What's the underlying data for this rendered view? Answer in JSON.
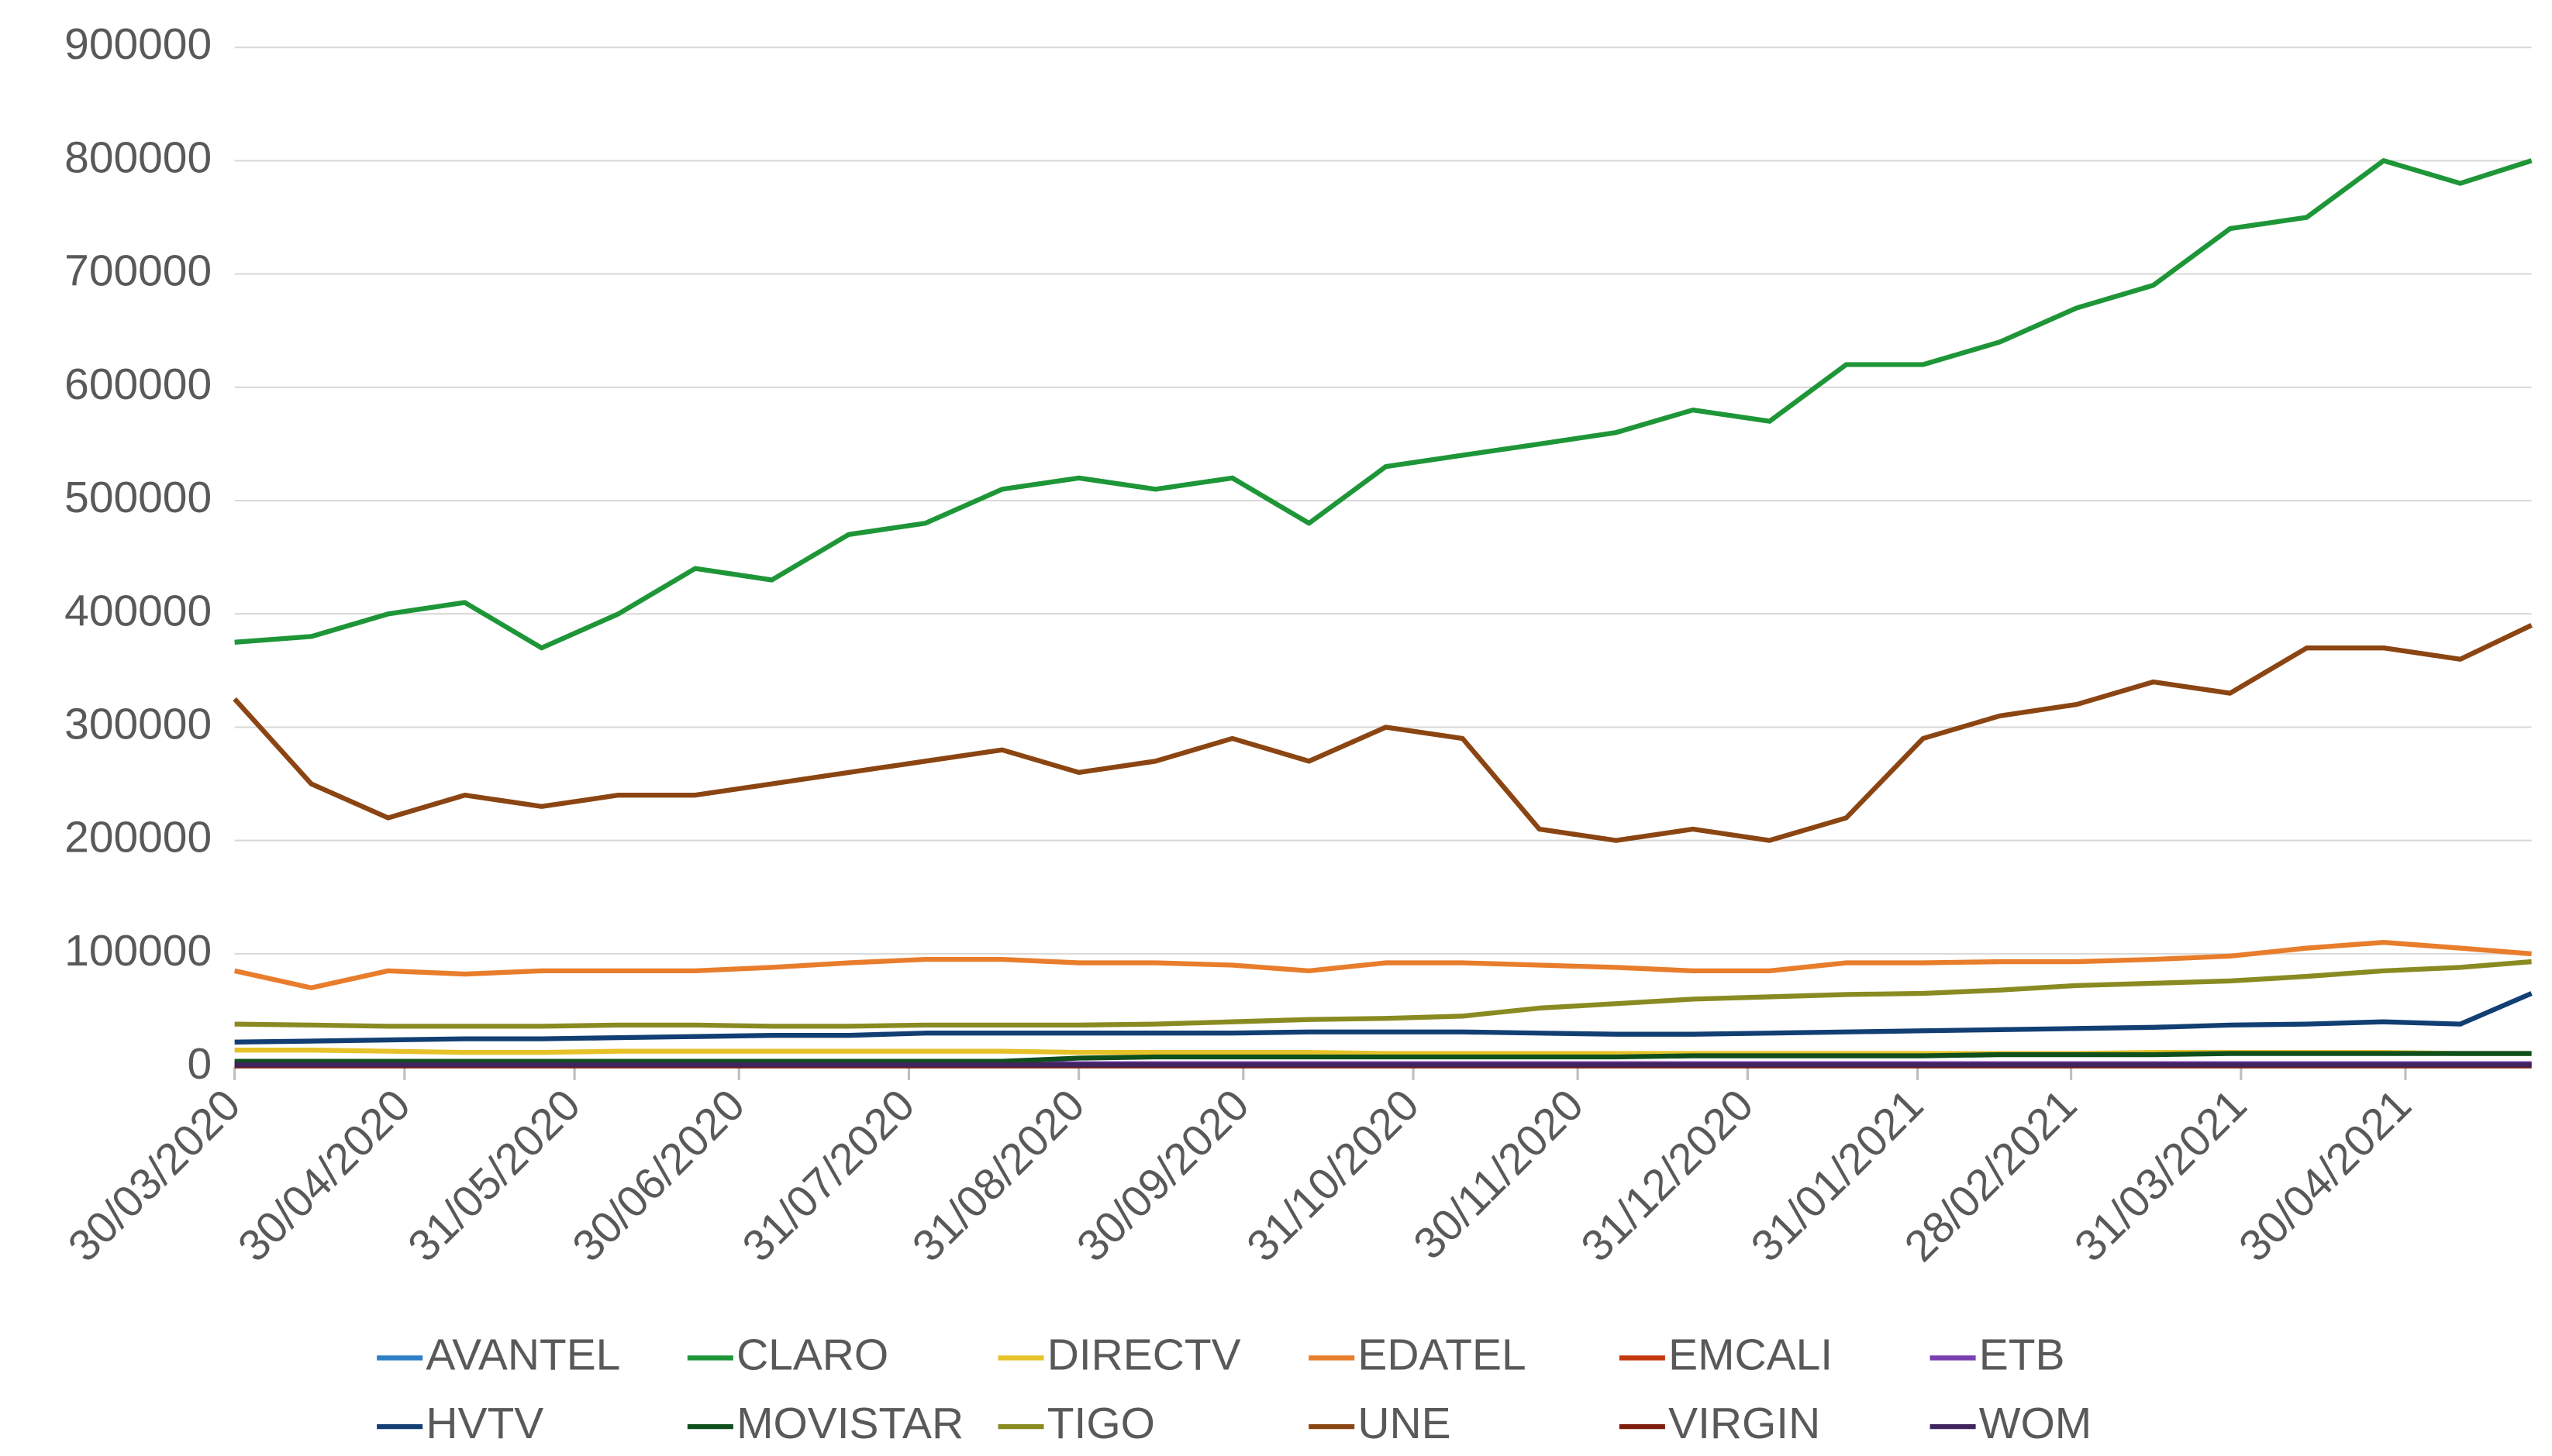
{
  "chart_data": {
    "type": "line",
    "x": [
      "30/03/2020",
      "13/04/2020",
      "27/04/2020",
      "11/05/2020",
      "25/05/2020",
      "08/06/2020",
      "22/06/2020",
      "06/07/2020",
      "20/07/2020",
      "03/08/2020",
      "17/08/2020",
      "31/08/2020",
      "14/09/2020",
      "28/09/2020",
      "12/10/2020",
      "26/10/2020",
      "09/11/2020",
      "23/11/2020",
      "07/12/2020",
      "21/12/2020",
      "04/01/2021",
      "18/01/2021",
      "01/02/2021",
      "15/02/2021",
      "01/03/2021",
      "15/03/2021",
      "29/03/2021",
      "12/04/2021",
      "26/04/2021",
      "10/05/2021",
      "23/05/2021"
    ],
    "xlim": [
      "30/03/2020",
      "23/05/2021"
    ],
    "xticks": [
      "30/03/2020",
      "30/04/2020",
      "31/05/2020",
      "30/06/2020",
      "31/07/2020",
      "31/08/2020",
      "30/09/2020",
      "31/10/2020",
      "30/11/2020",
      "31/12/2020",
      "31/01/2021",
      "28/02/2021",
      "31/03/2021",
      "30/04/2021"
    ],
    "ylim": [
      0,
      900000
    ],
    "yticks": [
      0,
      100000,
      200000,
      300000,
      400000,
      500000,
      600000,
      700000,
      800000,
      900000
    ],
    "grid": true,
    "legend": "bottom",
    "series": [
      {
        "name": "AVANTEL",
        "color": "#2e7fc6",
        "values": [
          3000,
          3000,
          3000,
          3000,
          3000,
          3000,
          3000,
          3000,
          3000,
          3000,
          3000,
          3000,
          3000,
          3000,
          3000,
          3000,
          3000,
          3000,
          3000,
          3000,
          3000,
          3000,
          3000,
          3000,
          3000,
          3000,
          3000,
          3000,
          3000,
          3000,
          3000
        ]
      },
      {
        "name": "CLARO",
        "color": "#1e9638",
        "values": [
          375000,
          380000,
          400000,
          410000,
          370000,
          400000,
          440000,
          430000,
          470000,
          480000,
          510000,
          520000,
          510000,
          520000,
          480000,
          530000,
          540000,
          550000,
          560000,
          580000,
          570000,
          620000,
          620000,
          640000,
          670000,
          690000,
          740000,
          750000,
          800000,
          780000,
          800000
        ]
      },
      {
        "name": "DIRECTV",
        "color": "#e6c229",
        "values": [
          15000,
          15000,
          14000,
          13000,
          13000,
          14000,
          14000,
          14000,
          14000,
          14000,
          14000,
          13000,
          13000,
          13000,
          13000,
          12000,
          12000,
          12000,
          12000,
          12000,
          12000,
          12000,
          12000,
          12000,
          12000,
          13000,
          13000,
          13000,
          13000,
          12000,
          12000
        ]
      },
      {
        "name": "EDATEL",
        "color": "#e87d2c",
        "values": [
          85000,
          70000,
          85000,
          82000,
          85000,
          85000,
          85000,
          88000,
          92000,
          95000,
          95000,
          92000,
          92000,
          90000,
          85000,
          92000,
          92000,
          90000,
          88000,
          85000,
          85000,
          92000,
          92000,
          93000,
          93000,
          95000,
          98000,
          105000,
          110000,
          105000,
          100000
        ]
      },
      {
        "name": "EMCALI",
        "color": "#c4380f",
        "values": [
          2000,
          2000,
          2000,
          2000,
          2000,
          2000,
          2000,
          2000,
          2000,
          2000,
          2000,
          2000,
          2000,
          2000,
          2000,
          2000,
          2000,
          2000,
          2000,
          2000,
          2000,
          2000,
          2000,
          2000,
          2000,
          2000,
          2000,
          2000,
          2000,
          2000,
          2000
        ]
      },
      {
        "name": "ETB",
        "color": "#7a3fb0",
        "values": [
          3000,
          3000,
          3000,
          3000,
          3000,
          3000,
          3000,
          3000,
          3000,
          3000,
          3000,
          3000,
          3000,
          3000,
          3000,
          3000,
          3000,
          3000,
          3000,
          3000,
          3000,
          3000,
          3000,
          3000,
          3000,
          3000,
          3000,
          3000,
          3000,
          3000,
          3000
        ]
      },
      {
        "name": "HVTV",
        "color": "#123f73",
        "values": [
          22000,
          23000,
          24000,
          25000,
          25000,
          26000,
          27000,
          28000,
          28000,
          30000,
          30000,
          30000,
          30000,
          30000,
          31000,
          31000,
          31000,
          30000,
          29000,
          29000,
          30000,
          31000,
          32000,
          33000,
          34000,
          35000,
          37000,
          38000,
          40000,
          38000,
          65000
        ]
      },
      {
        "name": "MOVISTAR",
        "color": "#0f4f1c",
        "values": [
          5000,
          5000,
          5000,
          5000,
          5000,
          5000,
          5000,
          5000,
          5000,
          5000,
          5000,
          8000,
          9000,
          9000,
          9000,
          9000,
          9000,
          9000,
          9000,
          10000,
          10000,
          10000,
          10000,
          11000,
          11000,
          11000,
          12000,
          12000,
          12000,
          12000,
          12000
        ]
      },
      {
        "name": "TIGO",
        "color": "#8a8a22",
        "values": [
          38000,
          37000,
          36000,
          36000,
          36000,
          37000,
          37000,
          36000,
          36000,
          37000,
          37000,
          37000,
          38000,
          40000,
          42000,
          43000,
          45000,
          52000,
          56000,
          60000,
          62000,
          64000,
          65000,
          68000,
          72000,
          74000,
          76000,
          80000,
          85000,
          88000,
          93000
        ]
      },
      {
        "name": "UNE",
        "color": "#8b4512",
        "values": [
          325000,
          250000,
          220000,
          240000,
          230000,
          240000,
          240000,
          250000,
          260000,
          270000,
          280000,
          260000,
          270000,
          290000,
          270000,
          300000,
          290000,
          210000,
          200000,
          210000,
          200000,
          220000,
          290000,
          310000,
          320000,
          340000,
          330000,
          370000,
          370000,
          360000,
          390000
        ]
      },
      {
        "name": "VIRGIN",
        "color": "#7d1c0c",
        "values": [
          1000,
          1000,
          1000,
          1000,
          1000,
          1000,
          1000,
          1000,
          1000,
          1000,
          1000,
          1000,
          1000,
          1000,
          1000,
          1000,
          1000,
          1000,
          1000,
          1000,
          1000,
          1000,
          1000,
          1000,
          1000,
          1000,
          1000,
          1000,
          1000,
          1000,
          1000
        ]
      },
      {
        "name": "WOM",
        "color": "#40245e",
        "values": [
          2000,
          2000,
          2000,
          2000,
          2000,
          2000,
          2000,
          2000,
          2000,
          2000,
          2000,
          2000,
          2000,
          2000,
          2000,
          2000,
          2000,
          2000,
          2000,
          2000,
          2000,
          2000,
          2000,
          2000,
          2000,
          2000,
          2000,
          2000,
          2000,
          2000,
          2000
        ]
      }
    ]
  }
}
